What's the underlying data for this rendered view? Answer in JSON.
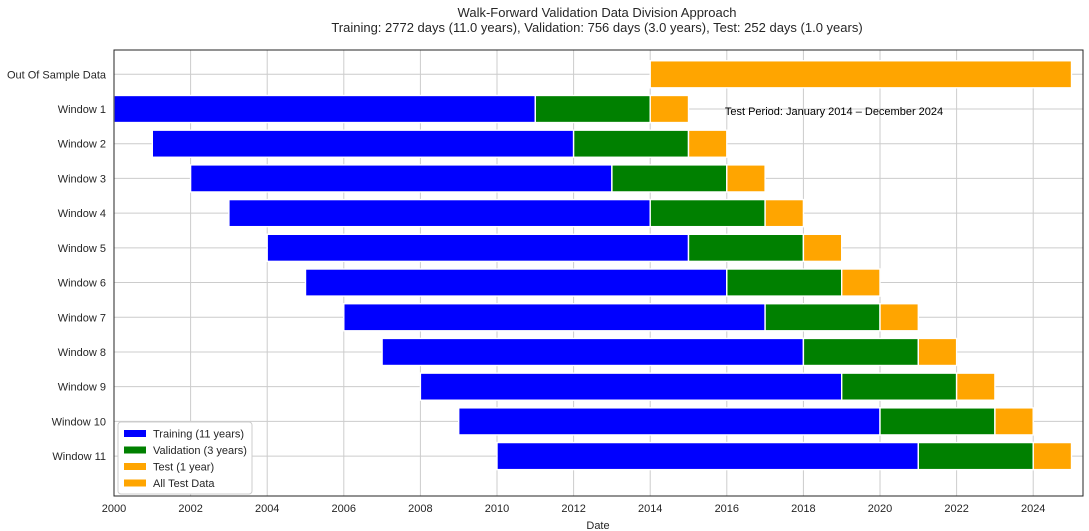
{
  "chart_data": {
    "type": "gantt",
    "title": "Walk-Forward Validation Data Division Approach",
    "subtitle": "Training: 2772 days (11.0 years), Validation: 756 days (3.0 years), Test: 252 days (1.0 years)",
    "xlabel": "Date",
    "ylabel": "",
    "xlim": [
      2000,
      2025.3
    ],
    "x_ticks": [
      "2000",
      "2002",
      "2004",
      "2006",
      "2008",
      "2010",
      "2012",
      "2014",
      "2016",
      "2018",
      "2020",
      "2022",
      "2024"
    ],
    "grid": true,
    "legend_position": "lower-left",
    "colors": {
      "training": "#0000ff",
      "validation": "#008000",
      "test": "#ffa500",
      "all_test": "#ffa500"
    },
    "legend": [
      {
        "label": "Training (11 years)",
        "color": "#0000ff"
      },
      {
        "label": "Validation (3 years)",
        "color": "#008000"
      },
      {
        "label": "Test (1 year)",
        "color": "#ffa500"
      },
      {
        "label": "All Test Data",
        "color": "#ffa500"
      }
    ],
    "out_of_sample": {
      "label": "Out Of Sample Data",
      "start": 2014,
      "end": 2025
    },
    "annotation": "Test Period: January 2014 – December 2024",
    "windows": [
      {
        "label": "Window 1",
        "train": [
          2000,
          2011
        ],
        "validation": [
          2011,
          2014
        ],
        "test": [
          2014,
          2015
        ]
      },
      {
        "label": "Window 2",
        "train": [
          2001,
          2012
        ],
        "validation": [
          2012,
          2015
        ],
        "test": [
          2015,
          2016
        ]
      },
      {
        "label": "Window 3",
        "train": [
          2002,
          2013
        ],
        "validation": [
          2013,
          2016
        ],
        "test": [
          2016,
          2017
        ]
      },
      {
        "label": "Window 4",
        "train": [
          2003,
          2014
        ],
        "validation": [
          2014,
          2017
        ],
        "test": [
          2017,
          2018
        ]
      },
      {
        "label": "Window 5",
        "train": [
          2004,
          2015
        ],
        "validation": [
          2015,
          2018
        ],
        "test": [
          2018,
          2019
        ]
      },
      {
        "label": "Window 6",
        "train": [
          2005,
          2016
        ],
        "validation": [
          2016,
          2019
        ],
        "test": [
          2019,
          2020
        ]
      },
      {
        "label": "Window 7",
        "train": [
          2006,
          2017
        ],
        "validation": [
          2017,
          2020
        ],
        "test": [
          2020,
          2021
        ]
      },
      {
        "label": "Window 8",
        "train": [
          2007,
          2018
        ],
        "validation": [
          2018,
          2021
        ],
        "test": [
          2021,
          2022
        ]
      },
      {
        "label": "Window 9",
        "train": [
          2008,
          2019
        ],
        "validation": [
          2019,
          2022
        ],
        "test": [
          2022,
          2023
        ]
      },
      {
        "label": "Window 10",
        "train": [
          2009,
          2020
        ],
        "validation": [
          2020,
          2023
        ],
        "test": [
          2023,
          2024
        ]
      },
      {
        "label": "Window 11",
        "train": [
          2010,
          2021
        ],
        "validation": [
          2021,
          2024
        ],
        "test": [
          2024,
          2025
        ]
      }
    ]
  }
}
